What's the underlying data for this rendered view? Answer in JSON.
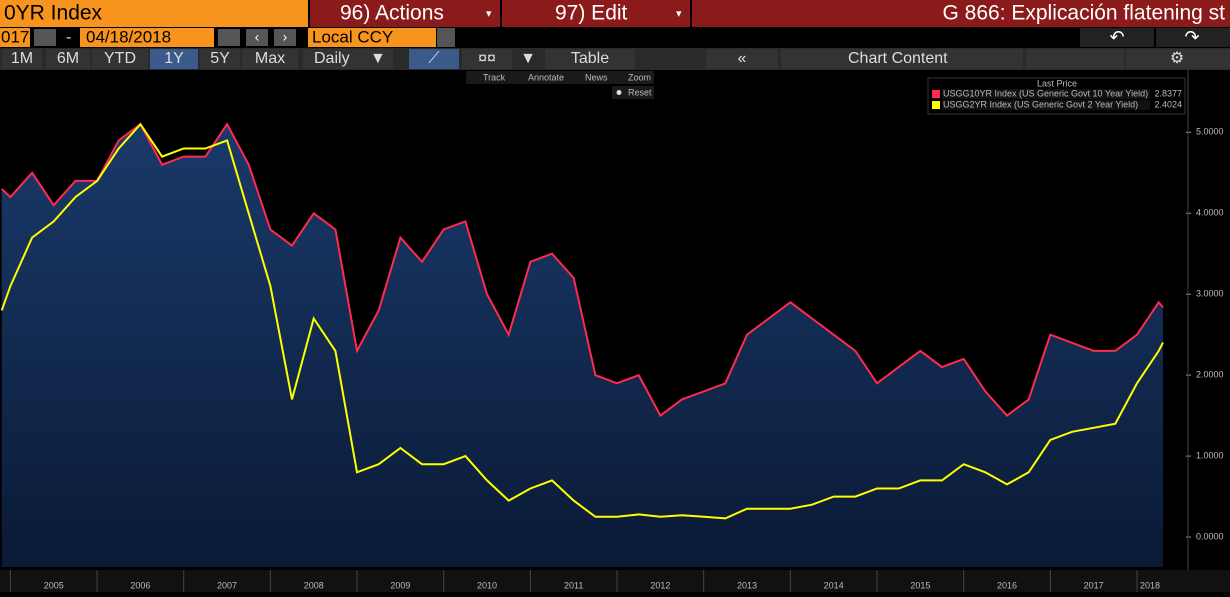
{
  "toolbar": {
    "security": "0YR Index",
    "actions": "96) Actions",
    "edit": "97) Edit",
    "page_title": "G 866: Explicación flatening st",
    "start_date": "017",
    "end_date": "04/18/2018",
    "currency": "Local CCY",
    "ranges": [
      "1M",
      "6M",
      "YTD",
      "1Y",
      "5Y",
      "Max"
    ],
    "frequency": "Daily",
    "table": "Table",
    "chart_content": "Chart Content",
    "tools": [
      "Track",
      "Annotate",
      "News",
      "Zoom"
    ],
    "reset": "Reset"
  },
  "chart_data": {
    "type": "line",
    "legend_title": "Last Price",
    "legend": "upper right",
    "x": [
      2004.9,
      2005.0,
      2005.25,
      2005.5,
      2005.75,
      2006.0,
      2006.25,
      2006.5,
      2006.75,
      2007.0,
      2007.25,
      2007.5,
      2007.75,
      2008.0,
      2008.25,
      2008.5,
      2008.75,
      2009.0,
      2009.25,
      2009.5,
      2009.75,
      2010.0,
      2010.25,
      2010.5,
      2010.75,
      2011.0,
      2011.25,
      2011.5,
      2011.75,
      2012.0,
      2012.25,
      2012.5,
      2012.75,
      2013.0,
      2013.25,
      2013.5,
      2013.75,
      2014.0,
      2014.25,
      2014.5,
      2014.75,
      2015.0,
      2015.25,
      2015.5,
      2015.75,
      2016.0,
      2016.25,
      2016.5,
      2016.75,
      2017.0,
      2017.25,
      2017.5,
      2017.75,
      2018.0,
      2018.25,
      2018.3
    ],
    "series": [
      {
        "name": "USGG10YR Index (US Generic Govt 10 Year Yield)",
        "color": "#ff2a4f",
        "area": true,
        "values": [
          4.3,
          4.2,
          4.5,
          4.1,
          4.4,
          4.4,
          4.9,
          5.1,
          4.6,
          4.7,
          4.7,
          5.1,
          4.6,
          3.8,
          3.6,
          4.0,
          3.8,
          2.3,
          2.8,
          3.7,
          3.4,
          3.8,
          3.9,
          3.0,
          2.5,
          3.4,
          3.5,
          3.2,
          2.0,
          1.9,
          2.0,
          1.5,
          1.7,
          1.8,
          1.9,
          2.5,
          2.7,
          2.9,
          2.7,
          2.5,
          2.3,
          1.9,
          2.1,
          2.3,
          2.1,
          2.2,
          1.8,
          1.5,
          1.7,
          2.5,
          2.4,
          2.3,
          2.3,
          2.5,
          2.9,
          2.8377
        ]
      },
      {
        "name": "USGG2YR Index (US Generic Govt 2 Year Yield)",
        "color": "#ffff00",
        "values": [
          2.8,
          3.1,
          3.7,
          3.9,
          4.2,
          4.4,
          4.8,
          5.1,
          4.7,
          4.8,
          4.8,
          4.9,
          4.0,
          3.1,
          1.7,
          2.7,
          2.3,
          0.8,
          0.9,
          1.1,
          0.9,
          0.9,
          1.0,
          0.7,
          0.45,
          0.6,
          0.7,
          0.45,
          0.25,
          0.25,
          0.28,
          0.25,
          0.27,
          0.25,
          0.23,
          0.35,
          0.35,
          0.35,
          0.4,
          0.5,
          0.5,
          0.6,
          0.6,
          0.7,
          0.7,
          0.9,
          0.8,
          0.65,
          0.8,
          1.2,
          1.3,
          1.35,
          1.4,
          1.9,
          2.3,
          2.4024
        ]
      }
    ],
    "xlim": [
      2004.88,
      2018.3
    ],
    "xticks": [
      2005,
      2006,
      2007,
      2008,
      2009,
      2010,
      2011,
      2012,
      2013,
      2014,
      2015,
      2016,
      2017,
      2018
    ],
    "ylim": [
      -0.37,
      5.77
    ],
    "yticks": [
      {
        "value": 0,
        "label": "0.0000"
      },
      {
        "value": 1,
        "label": "1.0000"
      },
      {
        "value": 2,
        "label": "2.0000"
      },
      {
        "value": 3,
        "label": "3.0000"
      },
      {
        "value": 4,
        "label": "4.0000"
      },
      {
        "value": 5,
        "label": "5.0000"
      }
    ]
  }
}
